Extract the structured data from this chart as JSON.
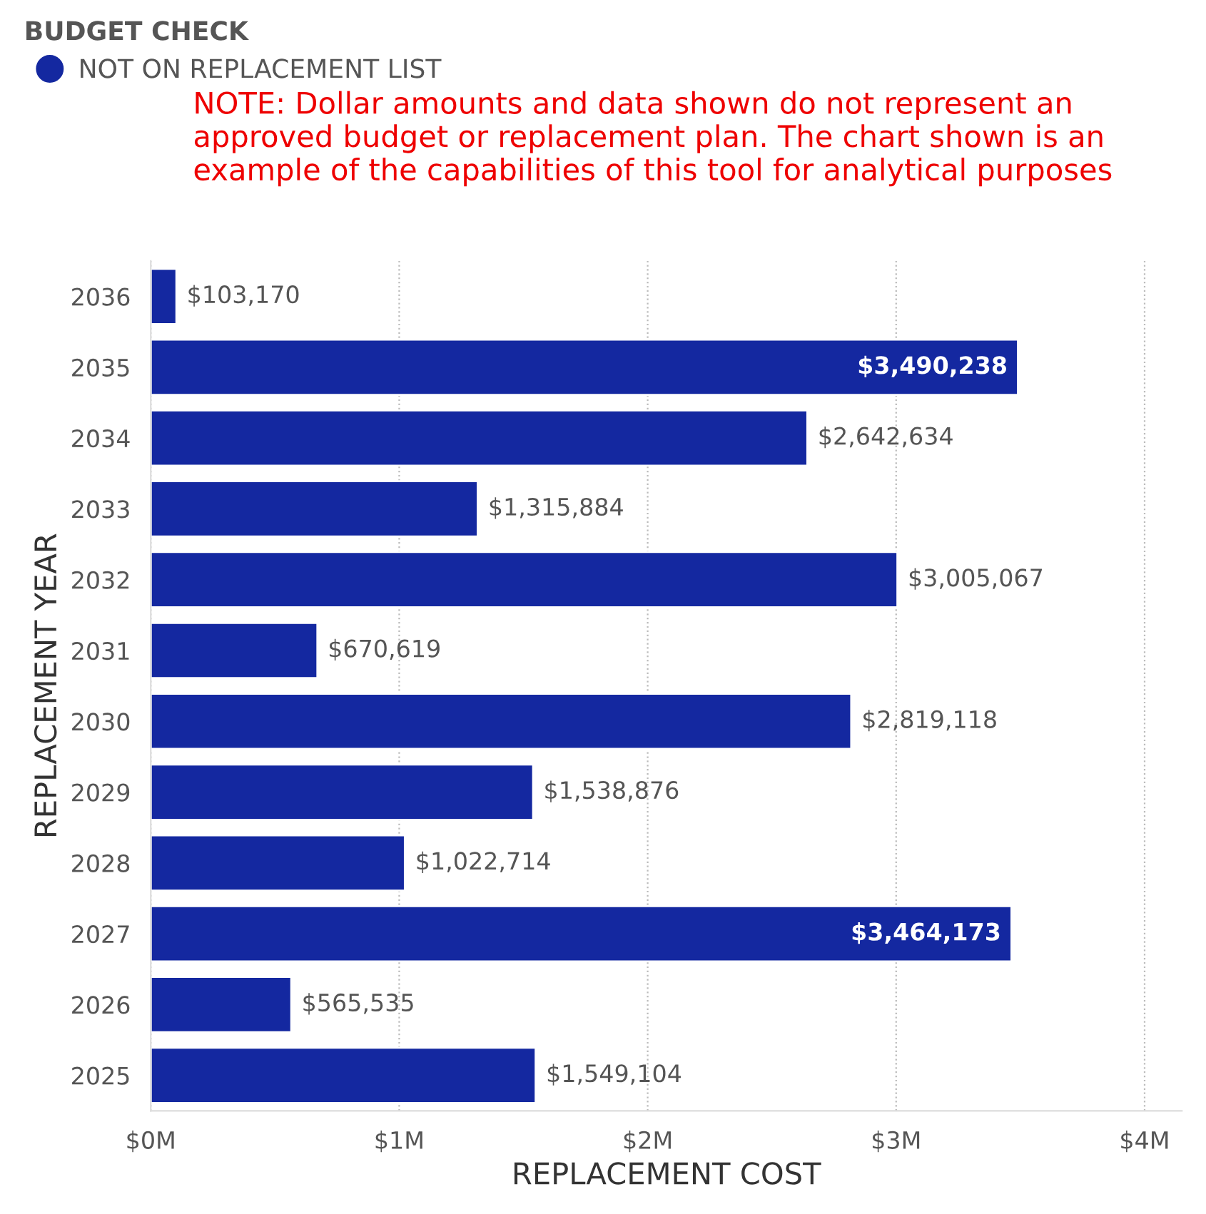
{
  "chart_data": {
    "type": "bar",
    "orientation": "horizontal",
    "xlabel": "REPLACEMENT COST",
    "ylabel": "REPLACEMENT YEAR",
    "legend_title": "BUDGET CHECK",
    "legend": "top left",
    "categories": [
      "2036",
      "2035",
      "2034",
      "2033",
      "2032",
      "2031",
      "2030",
      "2029",
      "2028",
      "2027",
      "2026",
      "2025"
    ],
    "series": [
      {
        "name": "NOT ON REPLACEMENT LIST",
        "color": "#1428a0",
        "values": [
          103170,
          3490238,
          2642634,
          1315884,
          3005067,
          670619,
          2819118,
          1538876,
          1022714,
          3464173,
          565535,
          1549104
        ],
        "value_labels": [
          "$103,170",
          "$3,490,238",
          "$2,642,634",
          "$1,315,884",
          "$3,005,067",
          "$670,619",
          "$2,819,118",
          "$1,538,876",
          "$1,022,714",
          "$3,464,173",
          "$565,535",
          "$1,549,104"
        ]
      }
    ],
    "xlim": [
      0,
      4150000
    ],
    "xticks": [
      {
        "value": 0,
        "label": "$0M"
      },
      {
        "value": 1000000,
        "label": "$1M"
      },
      {
        "value": 2000000,
        "label": "$2M"
      },
      {
        "value": 3000000,
        "label": "$3M"
      },
      {
        "value": 4000000,
        "label": "$4M"
      }
    ],
    "grid": "x",
    "annotations": [
      "NOTE: Dollar amounts and data shown do not represent an approved budget or replacement plan. The chart shown is an example of the capabilities of this tool for analytical purposes"
    ]
  }
}
